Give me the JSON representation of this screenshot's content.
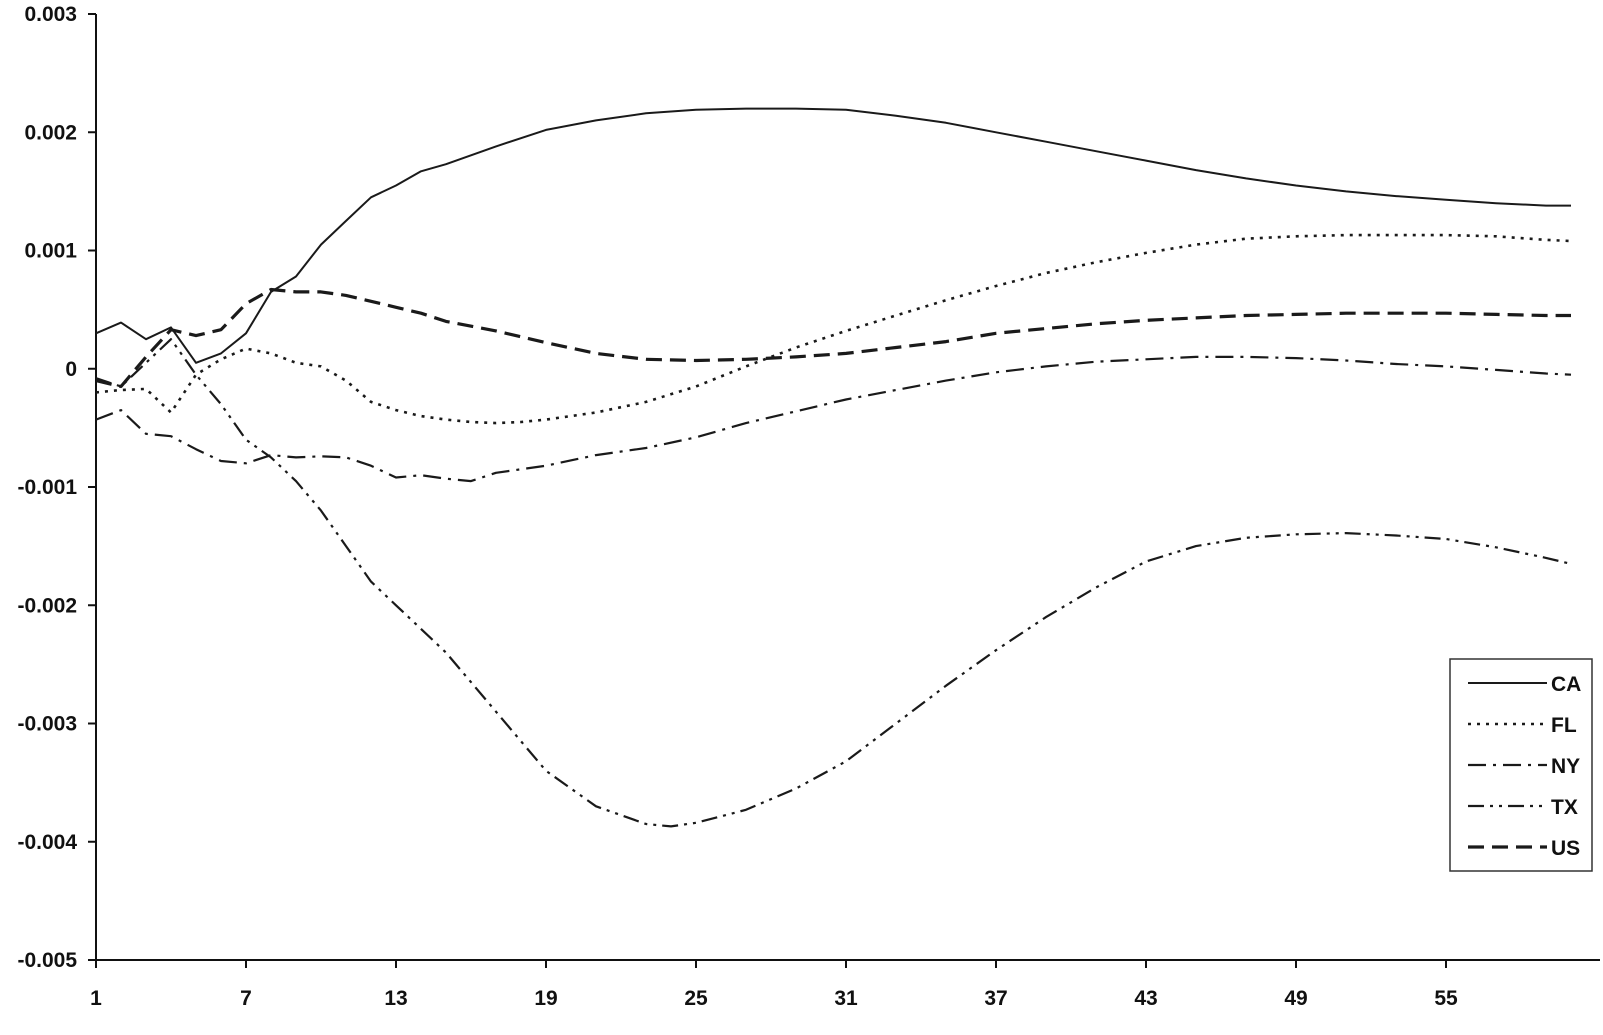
{
  "chart_data": {
    "type": "line",
    "title": "",
    "xlabel": "",
    "ylabel": "",
    "xlim": [
      1,
      60
    ],
    "ylim": [
      -0.005,
      0.003
    ],
    "x_ticks": [
      1,
      7,
      13,
      19,
      25,
      31,
      37,
      43,
      49,
      55
    ],
    "x_tick_labels": [
      "1",
      "7",
      "13",
      "19",
      "25",
      "31",
      "37",
      "43",
      "49",
      "55"
    ],
    "y_ticks": [
      0.003,
      0.002,
      0.001,
      0,
      -0.001,
      -0.002,
      -0.003,
      -0.004,
      -0.005
    ],
    "y_tick_labels": [
      "0.003",
      "0.002",
      "0.001",
      "0",
      "-0.001",
      "-0.002",
      "-0.003",
      "-0.004",
      "-0.005"
    ],
    "grid": false,
    "legend_position": "right",
    "series": [
      {
        "name": "CA",
        "dash": "solid",
        "x": [
          1,
          2,
          3,
          4,
          5,
          6,
          7,
          8,
          9,
          10,
          11,
          12,
          13,
          14,
          15,
          17,
          19,
          21,
          23,
          25,
          27,
          29,
          31,
          33,
          35,
          37,
          39,
          41,
          43,
          45,
          47,
          49,
          51,
          53,
          55,
          57,
          59,
          60
        ],
        "values": [
          0.0003,
          0.00039,
          0.00025,
          0.00035,
          5e-05,
          0.00013,
          0.0003,
          0.00065,
          0.00078,
          0.00105,
          0.00125,
          0.00145,
          0.00155,
          0.00167,
          0.00173,
          0.00188,
          0.00202,
          0.0021,
          0.00216,
          0.00219,
          0.0022,
          0.0022,
          0.00219,
          0.00214,
          0.00208,
          0.002,
          0.00192,
          0.00184,
          0.00176,
          0.00168,
          0.00161,
          0.00155,
          0.0015,
          0.00146,
          0.00143,
          0.0014,
          0.00138,
          0.00138
        ]
      },
      {
        "name": "FL",
        "dash": "dotted",
        "x": [
          1,
          2,
          3,
          4,
          5,
          6,
          7,
          8,
          9,
          10,
          11,
          12,
          13,
          14,
          15,
          16,
          17,
          18,
          19,
          21,
          23,
          25,
          27,
          29,
          31,
          33,
          35,
          37,
          39,
          41,
          43,
          45,
          47,
          49,
          51,
          53,
          55,
          57,
          59,
          60
        ],
        "values": [
          -0.0002,
          -0.00018,
          -0.00017,
          -0.00037,
          -5e-05,
          8e-05,
          0.00017,
          0.00013,
          5e-05,
          2e-05,
          -0.0001,
          -0.00028,
          -0.00035,
          -0.0004,
          -0.00043,
          -0.00045,
          -0.00046,
          -0.00045,
          -0.00043,
          -0.00037,
          -0.00028,
          -0.00015,
          2e-05,
          0.00018,
          0.00032,
          0.00045,
          0.00058,
          0.0007,
          0.00081,
          0.0009,
          0.00098,
          0.00105,
          0.0011,
          0.00112,
          0.00113,
          0.00113,
          0.00113,
          0.00112,
          0.00109,
          0.00108
        ]
      },
      {
        "name": "NY",
        "dash": "dashdot",
        "x": [
          1,
          2,
          3,
          4,
          5,
          6,
          7,
          8,
          9,
          10,
          11,
          12,
          13,
          14,
          15,
          16,
          17,
          19,
          21,
          23,
          25,
          27,
          29,
          31,
          33,
          35,
          37,
          39,
          41,
          43,
          45,
          47,
          49,
          51,
          53,
          55,
          57,
          59,
          60
        ],
        "values": [
          -0.00043,
          -0.00035,
          -0.00055,
          -0.00057,
          -0.00068,
          -0.00078,
          -0.0008,
          -0.00073,
          -0.00075,
          -0.00074,
          -0.00075,
          -0.00082,
          -0.00092,
          -0.0009,
          -0.00093,
          -0.00095,
          -0.00088,
          -0.00082,
          -0.00073,
          -0.00067,
          -0.00058,
          -0.00046,
          -0.00036,
          -0.00026,
          -0.00018,
          -0.0001,
          -3e-05,
          2e-05,
          6e-05,
          8e-05,
          0.0001,
          0.0001,
          9e-05,
          7e-05,
          4e-05,
          2e-05,
          -1e-05,
          -4e-05,
          -5e-05
        ]
      },
      {
        "name": "TX",
        "dash": "dashdotdot",
        "x": [
          1,
          2,
          3,
          4,
          5,
          6,
          7,
          8,
          9,
          10,
          11,
          12,
          13,
          14,
          15,
          17,
          19,
          21,
          23,
          24,
          25,
          27,
          29,
          31,
          33,
          35,
          37,
          39,
          41,
          43,
          45,
          47,
          49,
          51,
          53,
          55,
          57,
          59,
          60
        ],
        "values": [
          -8e-05,
          -0.00015,
          5e-05,
          0.00025,
          -5e-05,
          -0.0003,
          -0.0006,
          -0.00075,
          -0.00095,
          -0.0012,
          -0.0015,
          -0.0018,
          -0.002,
          -0.0022,
          -0.0024,
          -0.0029,
          -0.0034,
          -0.0037,
          -0.00385,
          -0.00387,
          -0.00384,
          -0.00373,
          -0.00355,
          -0.00332,
          -0.003,
          -0.00268,
          -0.00238,
          -0.0021,
          -0.00185,
          -0.00163,
          -0.0015,
          -0.00143,
          -0.0014,
          -0.00139,
          -0.00141,
          -0.00144,
          -0.00151,
          -0.0016,
          -0.00165
        ]
      },
      {
        "name": "US",
        "dash": "dashed",
        "x": [
          1,
          2,
          3,
          4,
          5,
          6,
          7,
          8,
          9,
          10,
          11,
          12,
          13,
          14,
          15,
          17,
          19,
          21,
          23,
          25,
          27,
          29,
          31,
          33,
          35,
          37,
          39,
          41,
          43,
          45,
          47,
          49,
          51,
          53,
          55,
          57,
          59,
          60
        ],
        "values": [
          -0.0001,
          -0.00015,
          0.0001,
          0.00033,
          0.00028,
          0.00033,
          0.00055,
          0.00067,
          0.00065,
          0.00065,
          0.00062,
          0.00057,
          0.00052,
          0.00047,
          0.0004,
          0.00032,
          0.00022,
          0.00013,
          8e-05,
          7e-05,
          8e-05,
          0.0001,
          0.00013,
          0.00018,
          0.00023,
          0.0003,
          0.00034,
          0.00038,
          0.00041,
          0.00043,
          0.00045,
          0.00046,
          0.00047,
          0.00047,
          0.00047,
          0.00046,
          0.00045,
          0.00045
        ]
      }
    ]
  },
  "colors": {
    "axis": "#111111",
    "series": "#1a1a1a",
    "legend_border": "#333333"
  }
}
